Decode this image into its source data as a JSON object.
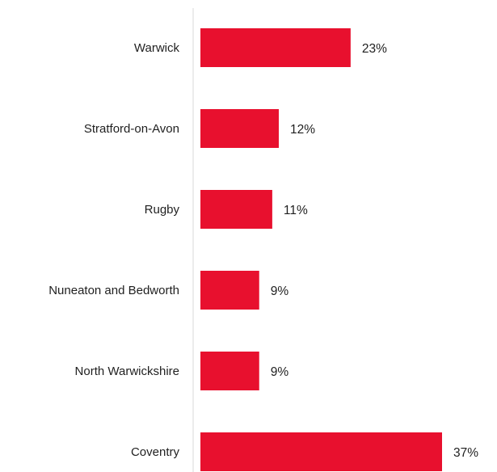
{
  "chart_data": {
    "type": "bar",
    "orientation": "horizontal",
    "title": "",
    "xlabel": "",
    "ylabel": "",
    "categories": [
      "Warwick",
      "Stratford-on-Avon",
      "Rugby",
      "Nuneaton and Bedworth",
      "North Warwickshire",
      "Coventry"
    ],
    "values": [
      23,
      12,
      11,
      9,
      9,
      37
    ],
    "value_labels": [
      "23%",
      "12%",
      "11%",
      "9%",
      "9%",
      "37%"
    ],
    "unit": "%",
    "xlim": [
      0,
      37
    ],
    "grid": false,
    "legend": "none",
    "bar_color": "#e8102e",
    "axis_color": "#d9d9d9"
  }
}
